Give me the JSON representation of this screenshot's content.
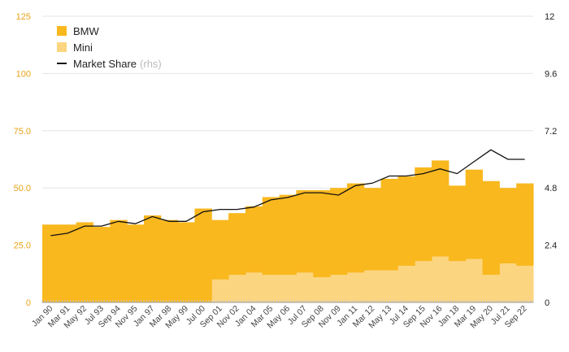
{
  "chart_data": {
    "type": "bar",
    "title": "",
    "xlabel": "",
    "ylabel": "",
    "ylim": [
      0,
      125
    ],
    "y2lim": [
      0,
      12
    ],
    "yticks": [
      "0",
      "25.0",
      "50.0",
      "75.0",
      "100",
      "125"
    ],
    "y2ticks": [
      "0",
      "2.4",
      "4.8",
      "7.2",
      "9.6",
      "12"
    ],
    "categories": [
      "Jan 90",
      "Mar 91",
      "May 92",
      "Jul 93",
      "Sep 94",
      "Nov 95",
      "Jan 97",
      "Mar 98",
      "May 99",
      "Jul 00",
      "Sep 01",
      "Nov 02",
      "Jan 04",
      "Mar 05",
      "May 06",
      "Jul 07",
      "Sep 08",
      "Nov 09",
      "Jan 11",
      "Mar 12",
      "May 13",
      "Jul 14",
      "Sep 15",
      "Nov 16",
      "Jan 18",
      "Mar 19",
      "May 20",
      "Jul 21",
      "Sep 22"
    ],
    "series": [
      {
        "name": "BMW",
        "axis": "left",
        "color": "#F9B81E",
        "values": [
          34,
          34,
          35,
          33,
          36,
          34,
          38,
          36,
          35,
          41,
          26,
          27,
          29,
          34,
          35,
          36,
          38,
          38,
          39,
          36,
          40,
          39,
          41,
          42,
          33,
          39,
          41,
          33,
          36
        ]
      },
      {
        "name": "Mini",
        "axis": "left",
        "color": "#FCD581",
        "values": [
          0,
          0,
          0,
          0,
          0,
          0,
          0,
          0,
          0,
          0,
          10,
          12,
          13,
          12,
          12,
          13,
          11,
          12,
          13,
          14,
          14,
          16,
          18,
          20,
          18,
          19,
          12,
          17,
          16
        ]
      },
      {
        "name": "Market Share",
        "axis": "right",
        "color": "#111111",
        "values": [
          2.8,
          2.9,
          3.2,
          3.2,
          3.4,
          3.3,
          3.6,
          3.4,
          3.4,
          3.8,
          3.9,
          3.9,
          4.0,
          4.3,
          4.4,
          4.6,
          4.6,
          4.5,
          4.9,
          5.0,
          5.3,
          5.3,
          5.4,
          5.6,
          5.4,
          5.9,
          6.4,
          6.0,
          6.0
        ]
      }
    ],
    "legend": {
      "position": "top-left",
      "entries": [
        {
          "label": "BMW"
        },
        {
          "label": "Mini"
        },
        {
          "label": "Market Share",
          "suffix": "(rhs)"
        }
      ]
    },
    "grid": true
  }
}
